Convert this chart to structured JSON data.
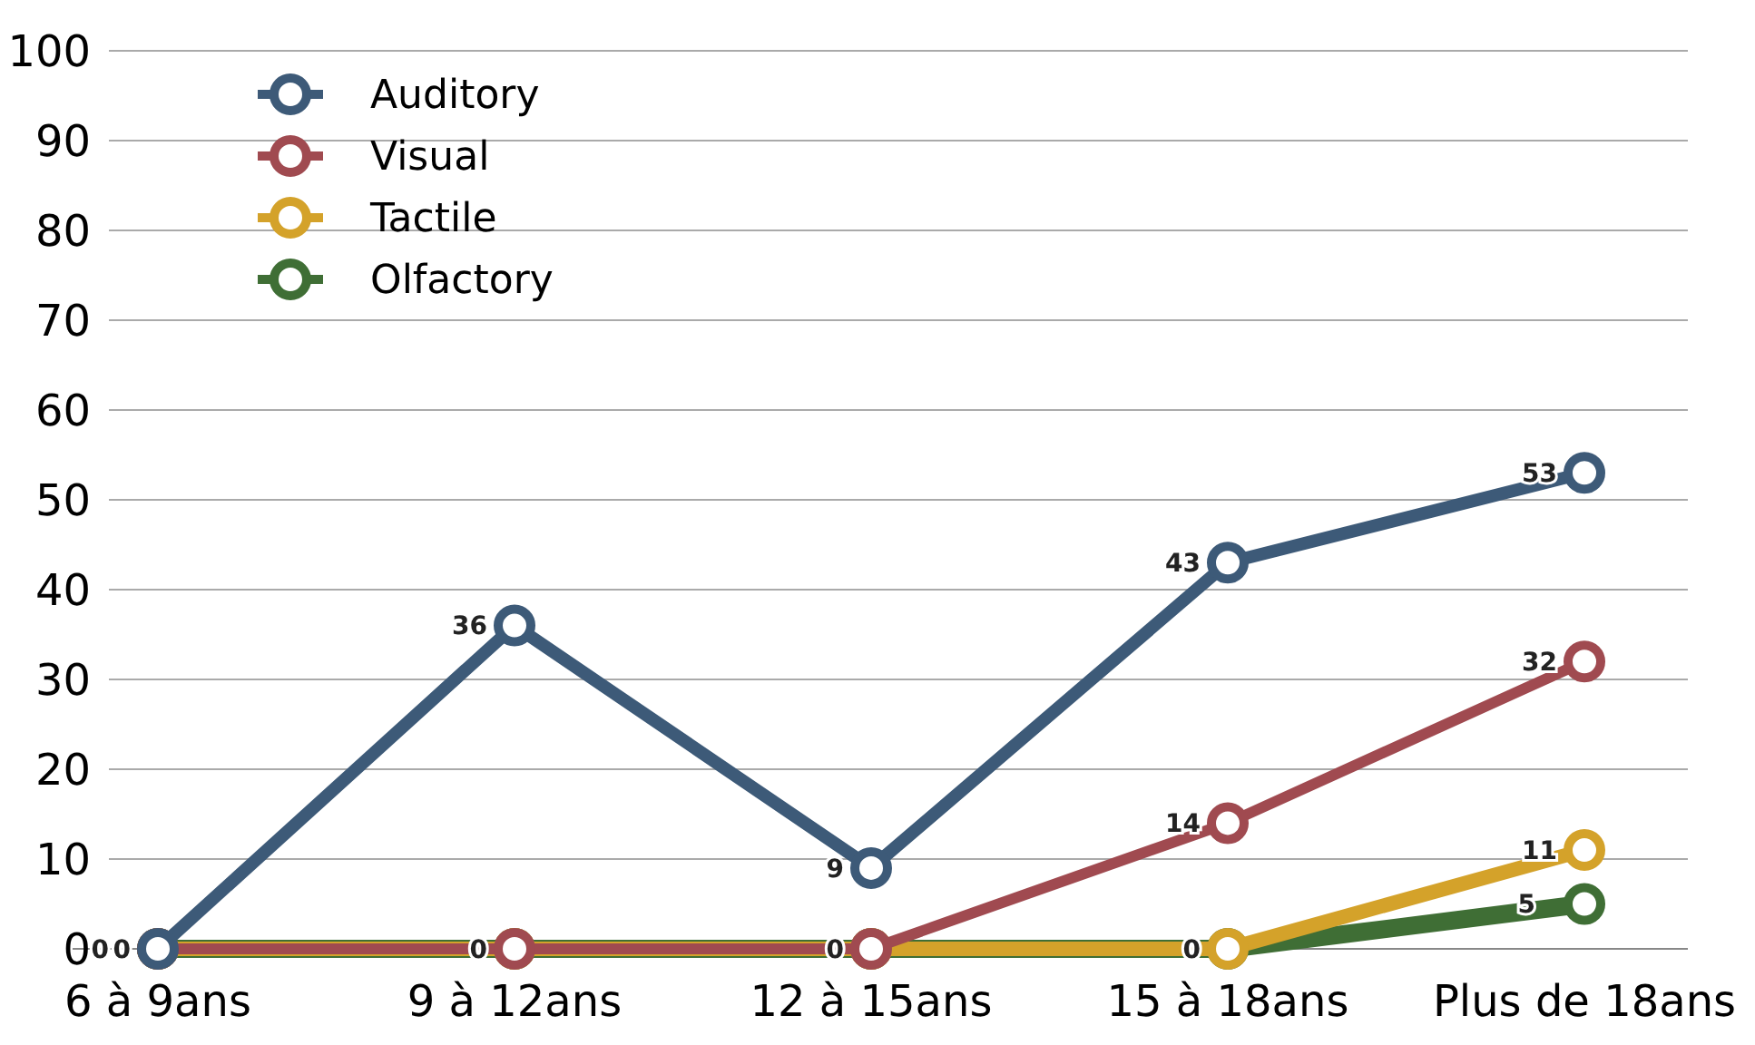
{
  "chart_data": {
    "type": "line",
    "categories": [
      "6 à 9ans",
      "9 à 12ans",
      "12 à 15ans",
      "15 à 18ans",
      "Plus de 18ans"
    ],
    "series": [
      {
        "name": "Auditory",
        "color": "#3d5a78",
        "values": [
          0,
          36,
          9,
          43,
          53
        ],
        "value_labels": [
          "0",
          "36",
          "9",
          "43",
          "53"
        ]
      },
      {
        "name": "Visual",
        "color": "#a04a50",
        "values": [
          0,
          0,
          0,
          14,
          32
        ],
        "value_labels": [
          null,
          "0",
          "0",
          "14",
          "32"
        ]
      },
      {
        "name": "Tactile",
        "color": "#d4a22a",
        "values": [
          0,
          0,
          0,
          0,
          11
        ],
        "value_labels": [
          null,
          null,
          null,
          "0",
          "11"
        ]
      },
      {
        "name": "Olfactory",
        "color": "#3f6e35",
        "values": [
          0,
          0,
          0,
          0,
          5
        ],
        "value_labels": [
          "0",
          null,
          null,
          null,
          "5"
        ]
      }
    ],
    "ylim": [
      0,
      100
    ],
    "yticks": [
      0,
      10,
      20,
      30,
      40,
      50,
      60,
      70,
      80,
      90,
      100
    ],
    "grid": "y",
    "legend": "top left",
    "marker": "circle",
    "line_style": "solid"
  }
}
